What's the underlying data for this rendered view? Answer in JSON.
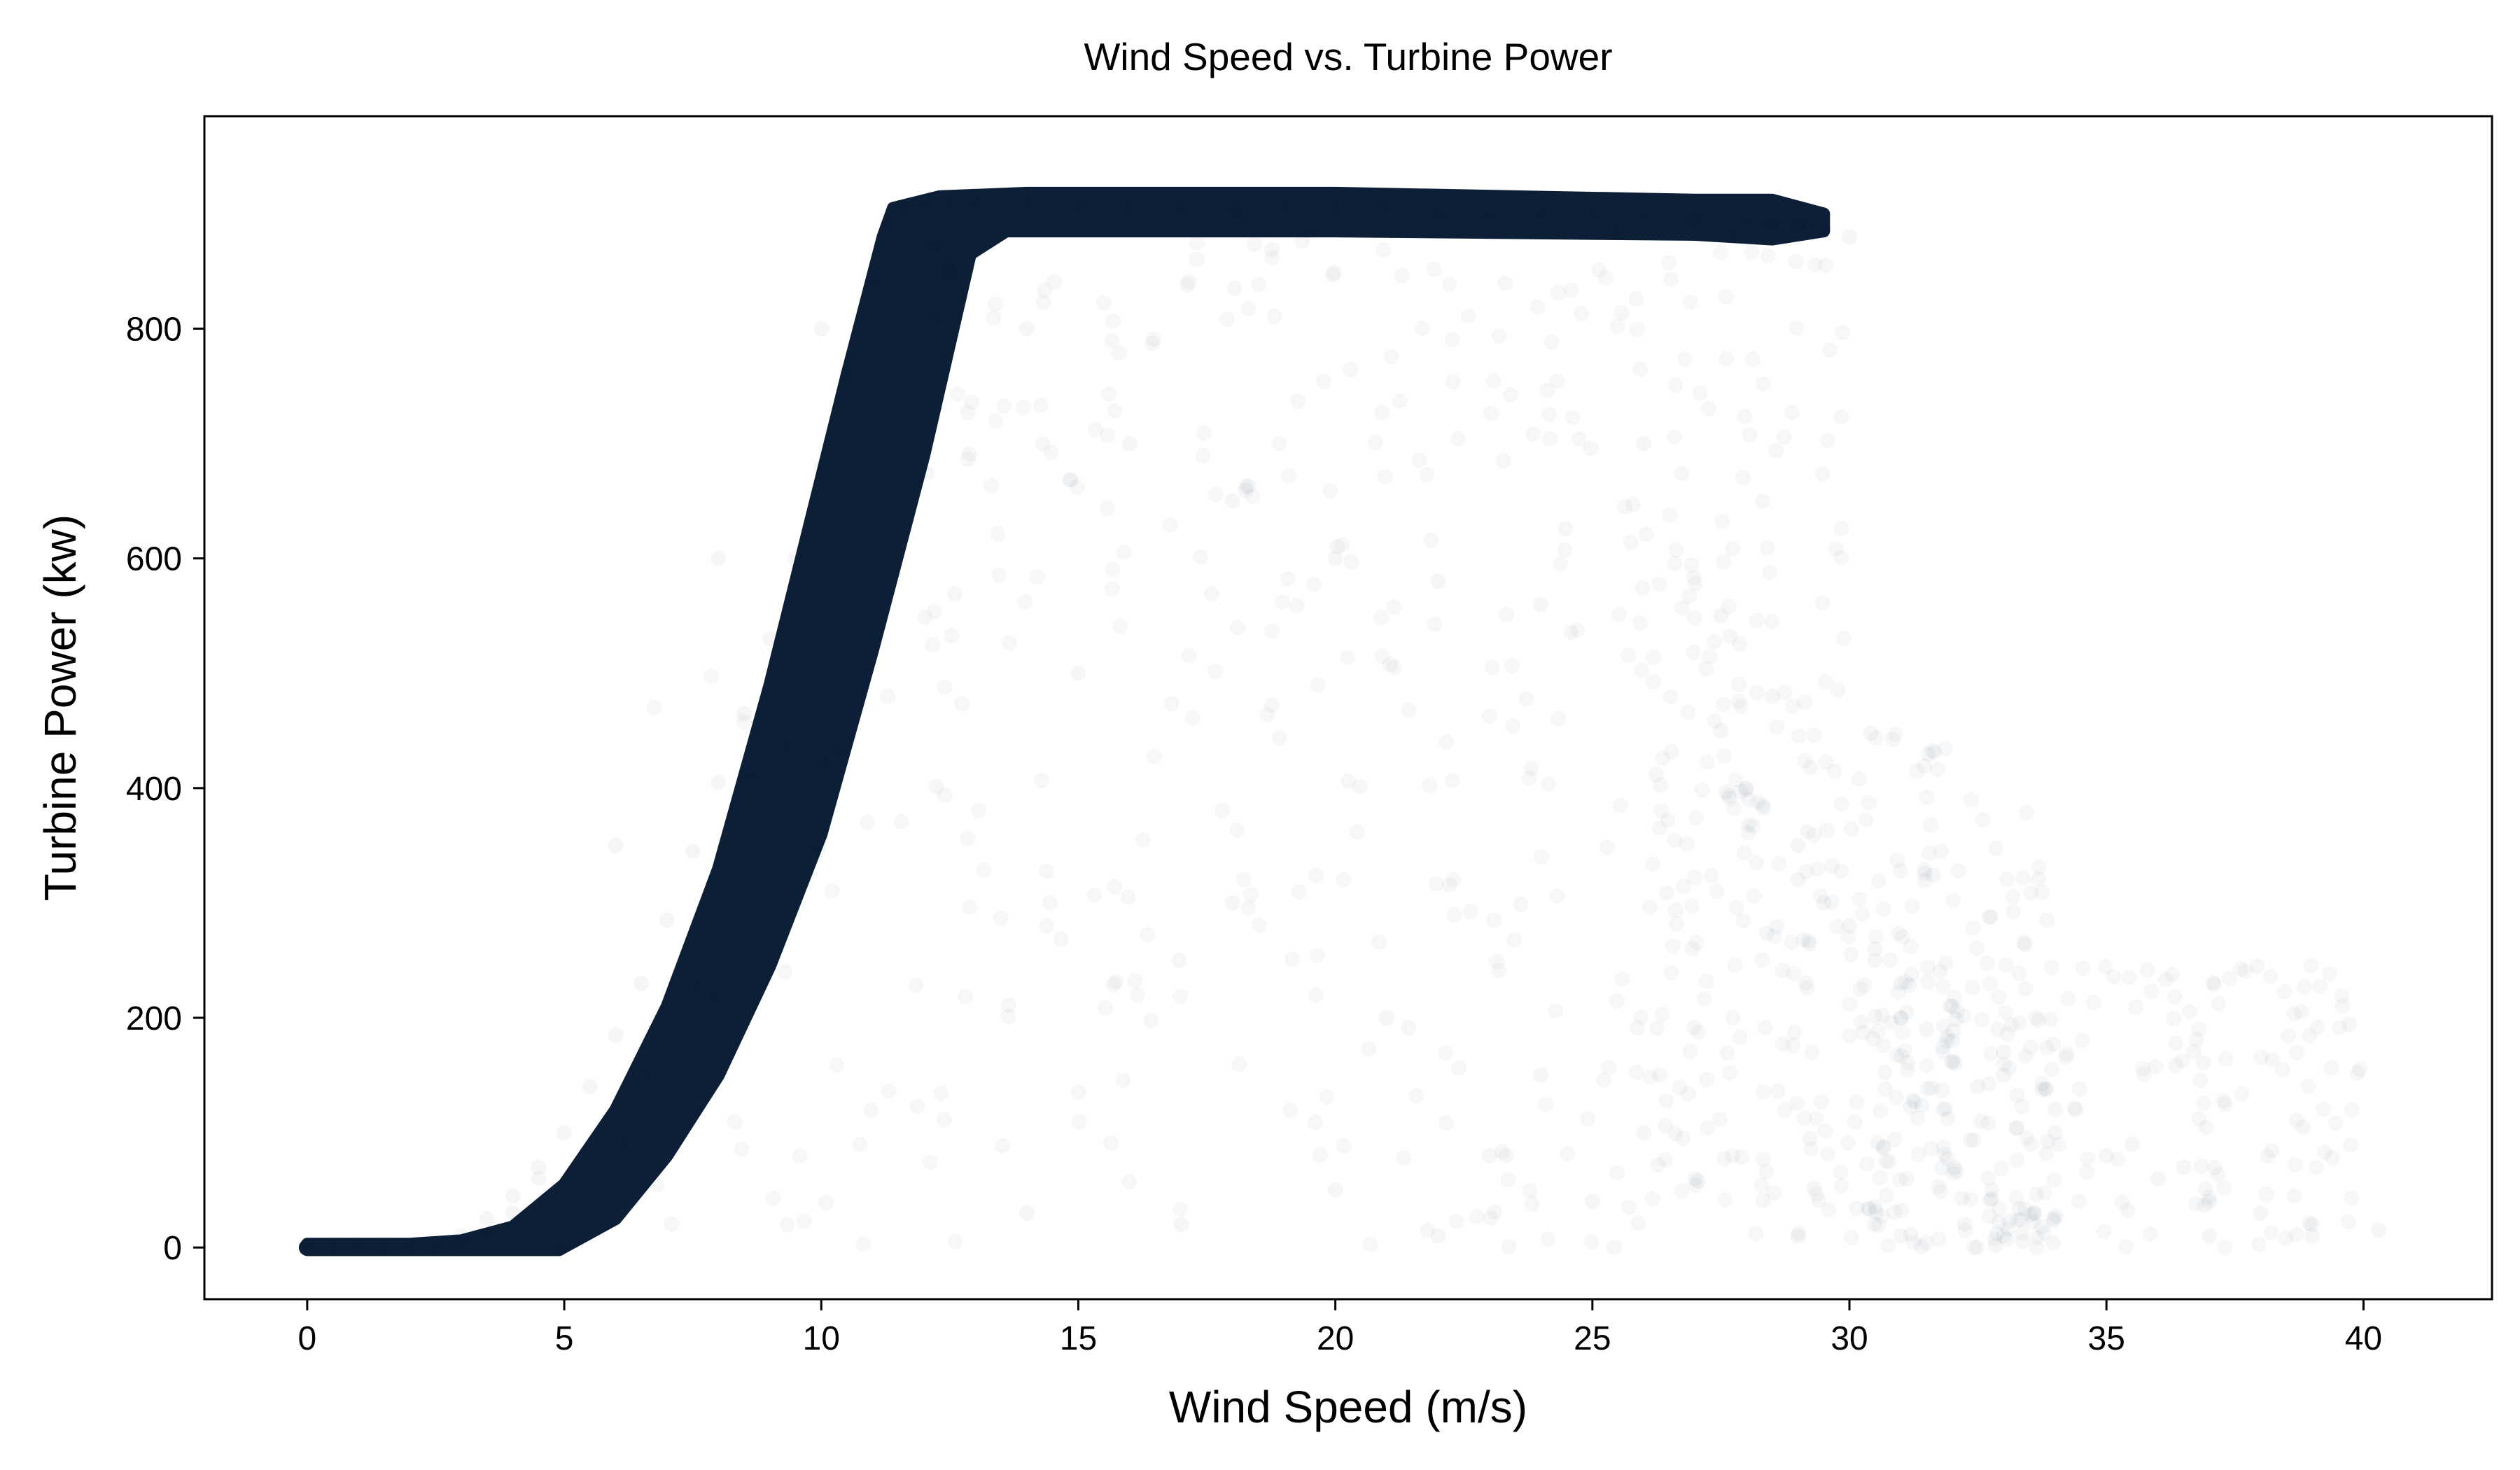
{
  "chart_data": {
    "type": "scatter",
    "title": "Wind Speed vs. Turbine Power",
    "xlabel": "Wind Speed (m/s)",
    "ylabel": "Turbine Power (kw)",
    "xlim": [
      -2,
      42.5
    ],
    "ylim": [
      -45,
      985
    ],
    "xticks": [
      0,
      5,
      10,
      15,
      20,
      25,
      30,
      35,
      40
    ],
    "yticks": [
      0,
      200,
      400,
      600,
      800
    ],
    "grid": false,
    "legend": "none",
    "colors": {
      "point": "#0c1f36",
      "background": "#ffffff",
      "axis": "#000000"
    },
    "series": [
      {
        "marker_opacity": 0.04,
        "points": {
          "x": [
            0,
            0.5,
            1,
            1.5,
            2,
            2.5,
            3,
            3.5,
            4,
            4.5,
            4.9,
            3,
            3.5,
            4,
            4.5,
            5,
            5.5,
            6,
            6.5,
            7,
            7.5,
            8,
            8.5,
            9,
            9.5,
            10,
            10.5,
            11,
            11.3,
            11.6,
            12,
            12.5,
            13,
            14,
            15,
            16,
            17,
            18,
            19,
            20,
            21,
            22,
            23,
            24,
            25,
            26,
            27,
            28,
            28.5,
            29,
            29.5,
            30,
            12.5,
            14,
            16,
            18,
            20,
            22,
            24,
            26,
            27.5,
            29,
            30.5,
            31,
            32,
            33,
            34,
            35,
            36,
            37,
            38,
            39,
            40.3,
            29,
            30,
            31,
            32,
            33,
            28,
            29.5,
            30.5,
            27.5,
            28.5,
            31.5,
            32.5,
            34,
            35.5,
            36.5,
            15,
            18,
            21,
            24,
            26,
            17,
            20,
            23,
            25,
            27,
            6,
            8,
            10,
            14,
            22,
            29,
            31,
            33,
            37,
            39
          ],
          "y": [
            0,
            0,
            0,
            0,
            0,
            0,
            10,
            25,
            45,
            70,
            0,
            5,
            10,
            30,
            60,
            100,
            140,
            185,
            230,
            285,
            345,
            405,
            465,
            530,
            600,
            680,
            760,
            840,
            890,
            905,
            910,
            910,
            910,
            910,
            905,
            905,
            905,
            905,
            905,
            905,
            905,
            900,
            900,
            900,
            900,
            898,
            898,
            895,
            893,
            890,
            885,
            880,
            850,
            800,
            700,
            650,
            600,
            580,
            560,
            700,
            450,
            350,
            250,
            200,
            180,
            150,
            120,
            80,
            60,
            40,
            30,
            20,
            15,
            320,
            280,
            230,
            210,
            170,
            400,
            300,
            260,
            550,
            480,
            190,
            140,
            100,
            90,
            70,
            500,
            300,
            200,
            150,
            100,
            20,
            50,
            80,
            40,
            60,
            350,
            600,
            800,
            30,
            10,
            10,
            10,
            10,
            10,
            10
          ]
        }
      }
    ]
  }
}
